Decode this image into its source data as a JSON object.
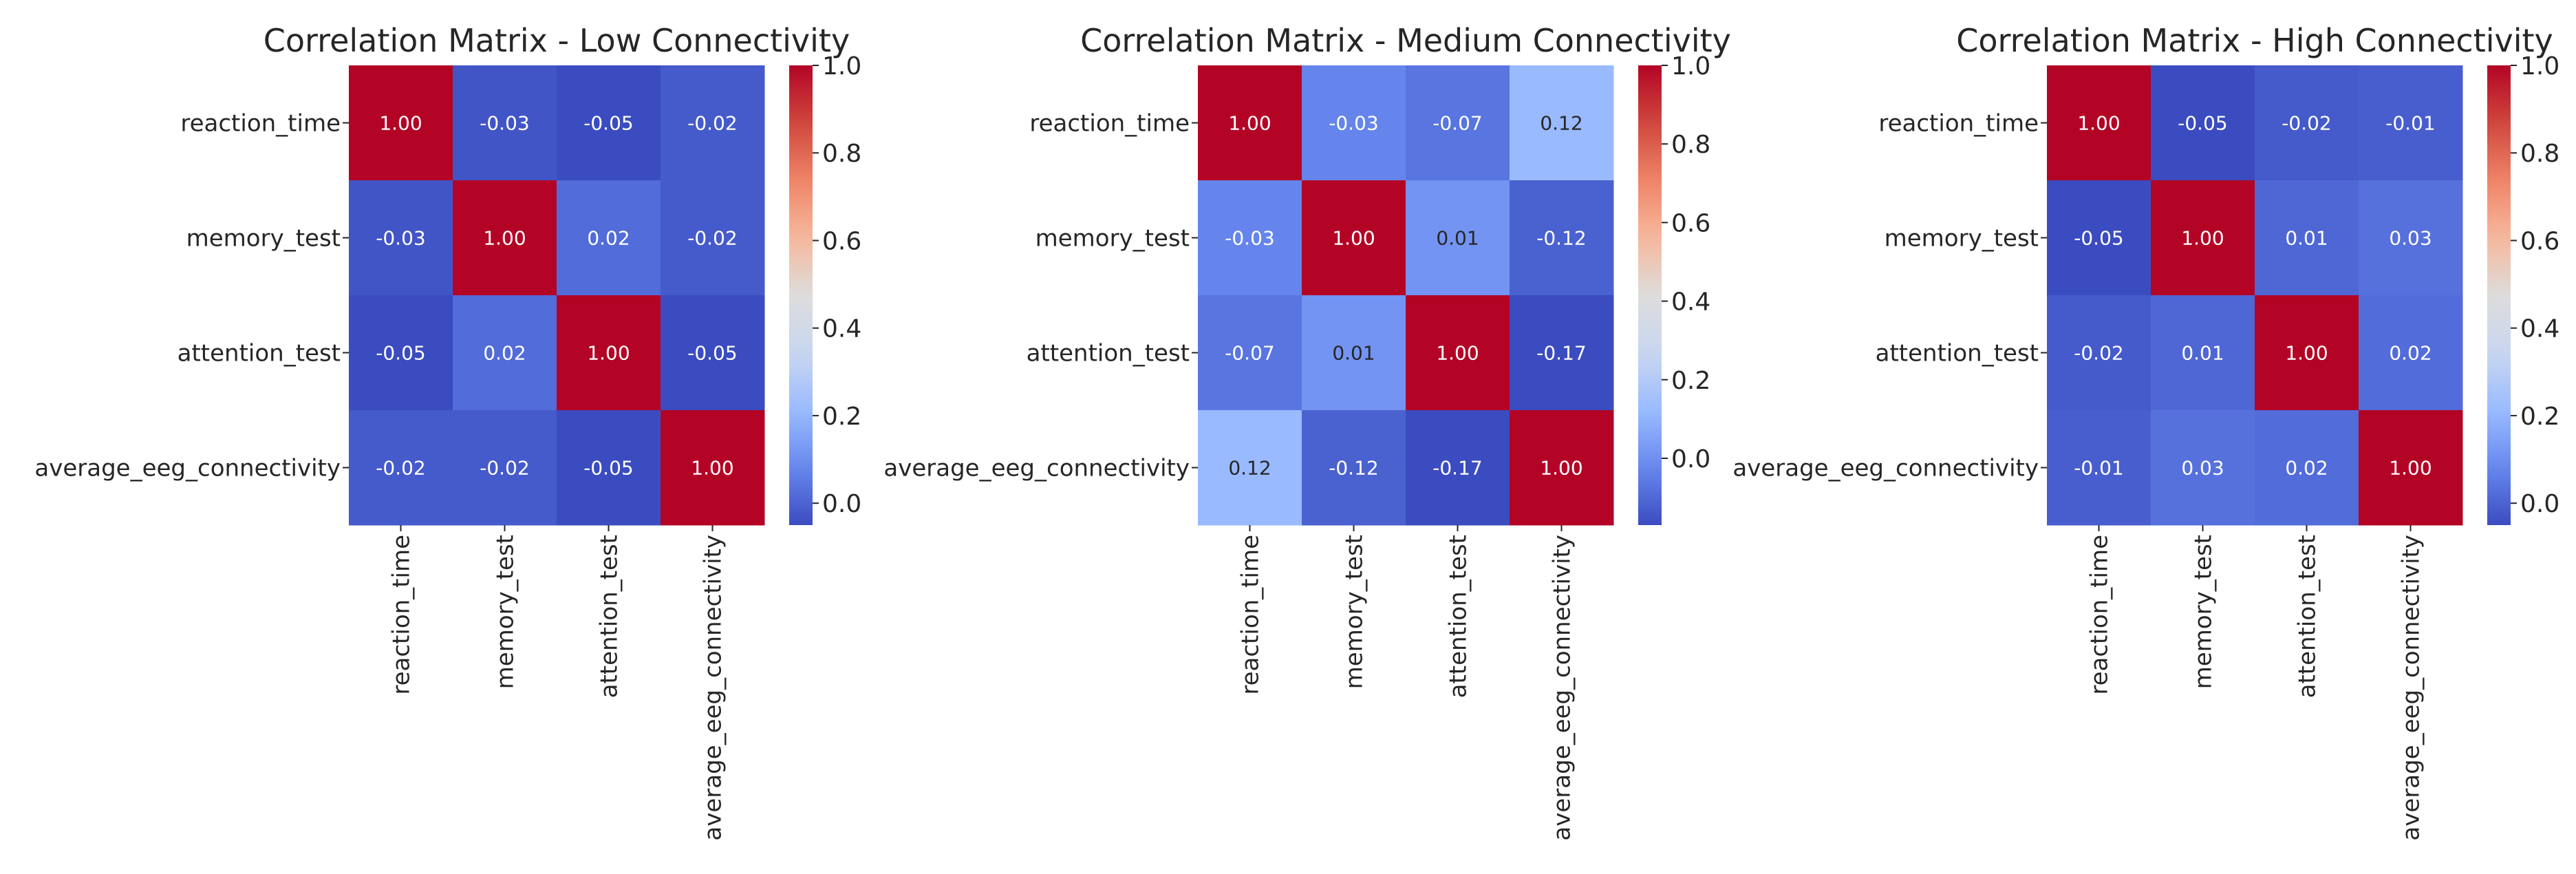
{
  "figure": {
    "colormap": "coolwarm",
    "colormap_stops": [
      "#3b4cc0",
      "#6788ee",
      "#9abbff",
      "#c9d7f0",
      "#dddcdc",
      "#f7b89c",
      "#ee8468",
      "#d0473d",
      "#b40426"
    ]
  },
  "chart_data": [
    {
      "type": "heatmap",
      "title": "Correlation Matrix - Low Connectivity",
      "row_labels": [
        "reaction_time",
        "memory_test",
        "attention_test",
        "average_eeg_connectivity"
      ],
      "col_labels": [
        "reaction_time",
        "memory_test",
        "attention_test",
        "average_eeg_connectivity"
      ],
      "values": [
        [
          1.0,
          -0.03,
          -0.05,
          -0.02
        ],
        [
          -0.03,
          1.0,
          0.02,
          -0.02
        ],
        [
          -0.05,
          0.02,
          1.0,
          -0.05
        ],
        [
          -0.02,
          -0.02,
          -0.05,
          1.0
        ]
      ],
      "annotation_format": "2f",
      "colorbar": {
        "vmin": -0.05,
        "vmax": 1.0,
        "ticks": [
          "0.0",
          "0.2",
          "0.4",
          "0.6",
          "0.8",
          "1.0"
        ]
      }
    },
    {
      "type": "heatmap",
      "title": "Correlation Matrix - Medium Connectivity",
      "row_labels": [
        "reaction_time",
        "memory_test",
        "attention_test",
        "average_eeg_connectivity"
      ],
      "col_labels": [
        "reaction_time",
        "memory_test",
        "attention_test",
        "average_eeg_connectivity"
      ],
      "values": [
        [
          1.0,
          -0.03,
          -0.07,
          0.12
        ],
        [
          -0.03,
          1.0,
          0.01,
          -0.12
        ],
        [
          -0.07,
          0.01,
          1.0,
          -0.17
        ],
        [
          0.12,
          -0.12,
          -0.17,
          1.0
        ]
      ],
      "annotation_format": "2f",
      "colorbar": {
        "vmin": -0.17,
        "vmax": 1.0,
        "ticks": [
          "0.0",
          "0.2",
          "0.4",
          "0.6",
          "0.8",
          "1.0"
        ]
      }
    },
    {
      "type": "heatmap",
      "title": "Correlation Matrix - High Connectivity",
      "row_labels": [
        "reaction_time",
        "memory_test",
        "attention_test",
        "average_eeg_connectivity"
      ],
      "col_labels": [
        "reaction_time",
        "memory_test",
        "attention_test",
        "average_eeg_connectivity"
      ],
      "values": [
        [
          1.0,
          -0.05,
          -0.02,
          -0.01
        ],
        [
          -0.05,
          1.0,
          0.01,
          0.03
        ],
        [
          -0.02,
          0.01,
          1.0,
          0.02
        ],
        [
          -0.01,
          0.03,
          0.02,
          1.0
        ]
      ],
      "annotation_format": "2f",
      "colorbar": {
        "vmin": -0.05,
        "vmax": 1.0,
        "ticks": [
          "0.0",
          "0.2",
          "0.4",
          "0.6",
          "0.8",
          "1.0"
        ]
      }
    }
  ]
}
